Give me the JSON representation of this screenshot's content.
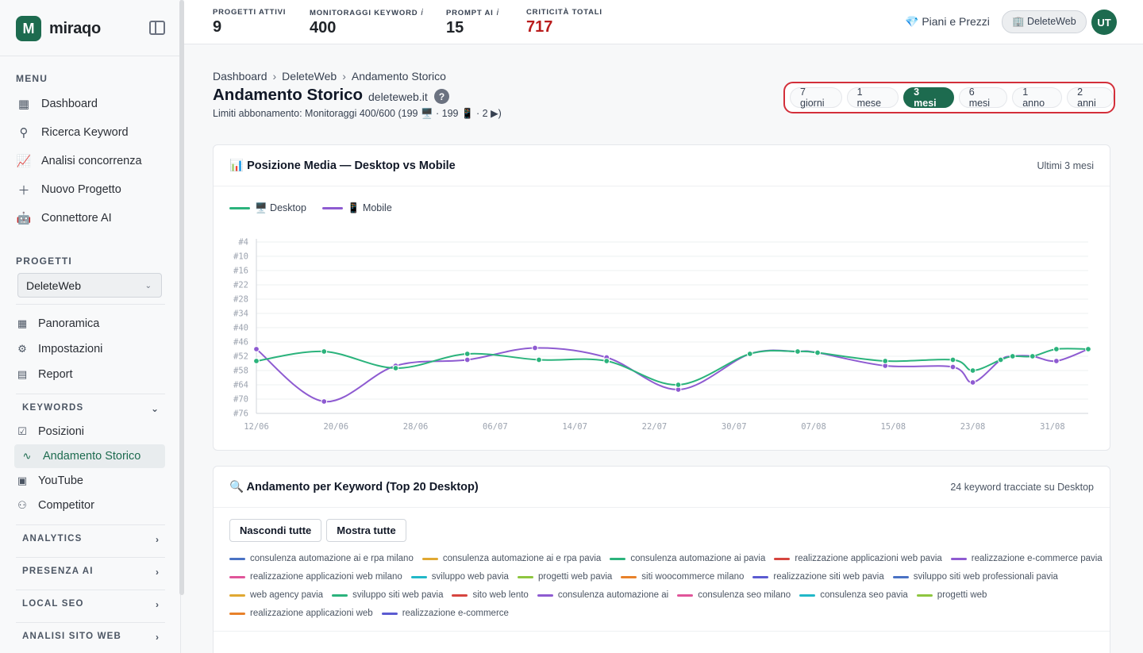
{
  "brand": {
    "logo_letter": "M",
    "name": "miraqo"
  },
  "sidebar": {
    "menu_label": "MENU",
    "menu": [
      {
        "label": "Dashboard",
        "icon": "grid-icon"
      },
      {
        "label": "Ricerca Keyword",
        "icon": "search-icon"
      },
      {
        "label": "Analisi concorrenza",
        "icon": "chart-line-icon"
      },
      {
        "label": "Nuovo Progetto",
        "icon": "plus-icon"
      },
      {
        "label": "Connettore AI",
        "icon": "robot-icon"
      }
    ],
    "projects_label": "PROGETTI",
    "project_selected": "DeleteWeb",
    "project_nav": [
      {
        "label": "Panoramica",
        "icon": "grid-icon"
      },
      {
        "label": "Impostazioni",
        "icon": "gear-icon"
      },
      {
        "label": "Report",
        "icon": "document-icon"
      }
    ],
    "keywords_group": "KEYWORDS",
    "keywords_nav": [
      {
        "label": "Posizioni",
        "icon": "checkbox-icon"
      },
      {
        "label": "Andamento Storico",
        "icon": "activity-icon"
      },
      {
        "label": "YouTube",
        "icon": "youtube-icon"
      },
      {
        "label": "Competitor",
        "icon": "users-icon"
      }
    ],
    "groups": [
      "ANALYTICS",
      "PRESENZA AI",
      "LOCAL SEO",
      "ANALISI SITO WEB"
    ]
  },
  "topbar": {
    "stats": [
      {
        "label": "PROGETTI ATTIVI",
        "value": "9",
        "info": ""
      },
      {
        "label": "MONITORAGGI KEYWORD",
        "value": "400",
        "info": "i"
      },
      {
        "label": "PROMPT AI",
        "value": "15",
        "info": "i"
      },
      {
        "label": "CRITICITÀ TOTALI",
        "value": "717",
        "info": ""
      }
    ],
    "plans_link": "💎 Piani e Prezzi",
    "account": "🏢 DeleteWeb",
    "avatar": "UT"
  },
  "header": {
    "breadcrumb": [
      "Dashboard",
      "DeleteWeb",
      "Andamento Storico"
    ],
    "title": "Andamento Storico",
    "domain": "deleteweb.it",
    "help": "?",
    "limits": "Limiti abbonamento: Monitoraggi 400/600 (199 🖥️ · 199 📱 · 2 ▶)"
  },
  "ranges": [
    "7 giorni",
    "1 mese",
    "3 mesi",
    "6 mesi",
    "1 anno",
    "2 anni"
  ],
  "range_selected": "3 mesi",
  "chart_card": {
    "title": "📊 Posizione Media — Desktop vs Mobile",
    "note": "Ultimi 3 mesi"
  },
  "chart_data": {
    "type": "line",
    "x": [
      "12/06",
      "16/06",
      "20/06",
      "28/06",
      "04/07",
      "11/07",
      "18/07",
      "25/07",
      "01/08",
      "06/08",
      "08/08",
      "16/08",
      "23/08",
      "25/08",
      "28/08",
      "29/08",
      "31/08",
      "02/09",
      "04/09"
    ],
    "x_ticks": [
      "12/06",
      "20/06",
      "28/06",
      "06/07",
      "14/07",
      "22/07",
      "30/07",
      "07/08",
      "15/08",
      "23/08",
      "31/08"
    ],
    "y_ticks": [
      "#4",
      "#10",
      "#16",
      "#22",
      "#28",
      "#34",
      "#40",
      "#46",
      "#52",
      "#58",
      "#64",
      "#70",
      "#76"
    ],
    "ylim": [
      4,
      76
    ],
    "y_inverted": true,
    "colors": {
      "desktop": "#2bb37c",
      "mobile": "#8e5bd1"
    },
    "series": [
      {
        "name": "🖥️ Desktop",
        "values": [
          [
            0,
            54
          ],
          [
            8.5,
            50
          ],
          [
            17.5,
            57
          ],
          [
            26.5,
            51
          ],
          [
            35.5,
            53.5
          ],
          [
            44,
            54
          ],
          [
            53,
            64
          ],
          [
            62,
            51
          ],
          [
            68,
            50
          ],
          [
            70.5,
            50.5
          ],
          [
            79,
            54
          ],
          [
            87.5,
            53.5
          ],
          [
            90,
            58
          ],
          [
            93.5,
            53.5
          ],
          [
            95,
            52
          ],
          [
            97.5,
            52
          ],
          [
            100.5,
            49
          ],
          [
            104.5,
            49
          ]
        ]
      },
      {
        "name": "📱 Mobile",
        "values": [
          [
            0,
            49
          ],
          [
            8.5,
            71
          ],
          [
            17.5,
            56
          ],
          [
            26.5,
            53.5
          ],
          [
            35,
            48.5
          ],
          [
            44,
            52.5
          ],
          [
            53,
            66
          ],
          [
            62,
            51
          ],
          [
            68,
            50
          ],
          [
            70.5,
            50.5
          ],
          [
            79,
            56
          ],
          [
            87.5,
            56.5
          ],
          [
            90,
            63
          ],
          [
            93.5,
            53.5
          ],
          [
            95,
            52
          ],
          [
            97.5,
            52
          ],
          [
            100.5,
            54
          ],
          [
            104.5,
            49
          ]
        ]
      }
    ]
  },
  "kw_card": {
    "title": "🔍 Andamento per Keyword (Top 20 Desktop)",
    "note": "24 keyword tracciate su Desktop",
    "hide_all": "Nascondi tutte",
    "show_all": "Mostra tutte",
    "keywords": [
      {
        "label": "consulenza automazione ai e rpa milano",
        "color": "#4a72c4"
      },
      {
        "label": "consulenza automazione ai e rpa pavia",
        "color": "#e0a832"
      },
      {
        "label": "consulenza automazione ai pavia",
        "color": "#2bb37c"
      },
      {
        "label": "realizzazione applicazioni web pavia",
        "color": "#d6453f"
      },
      {
        "label": "realizzazione e-commerce pavia",
        "color": "#8e5bd1"
      },
      {
        "label": "realizzazione applicazioni web milano",
        "color": "#e0559a"
      },
      {
        "label": "sviluppo web pavia",
        "color": "#21b8c8"
      },
      {
        "label": "progetti web pavia",
        "color": "#8ec63f"
      },
      {
        "label": "siti woocommerce milano",
        "color": "#e8812a"
      },
      {
        "label": "realizzazione siti web pavia",
        "color": "#5b5bd1"
      },
      {
        "label": "sviluppo siti web professionali pavia",
        "color": "#4a72c4"
      },
      {
        "label": "web agency pavia",
        "color": "#e0a832"
      },
      {
        "label": "sviluppo siti web pavia",
        "color": "#2bb37c"
      },
      {
        "label": "sito web lento",
        "color": "#d6453f"
      },
      {
        "label": "consulenza automazione ai",
        "color": "#8e5bd1"
      },
      {
        "label": "consulenza seo milano",
        "color": "#e0559a"
      },
      {
        "label": "consulenza seo pavia",
        "color": "#21b8c8"
      },
      {
        "label": "progetti web",
        "color": "#8ec63f"
      },
      {
        "label": "realizzazione applicazioni web",
        "color": "#e8812a"
      },
      {
        "label": "realizzazione e-commerce",
        "color": "#5b5bd1"
      }
    ]
  }
}
